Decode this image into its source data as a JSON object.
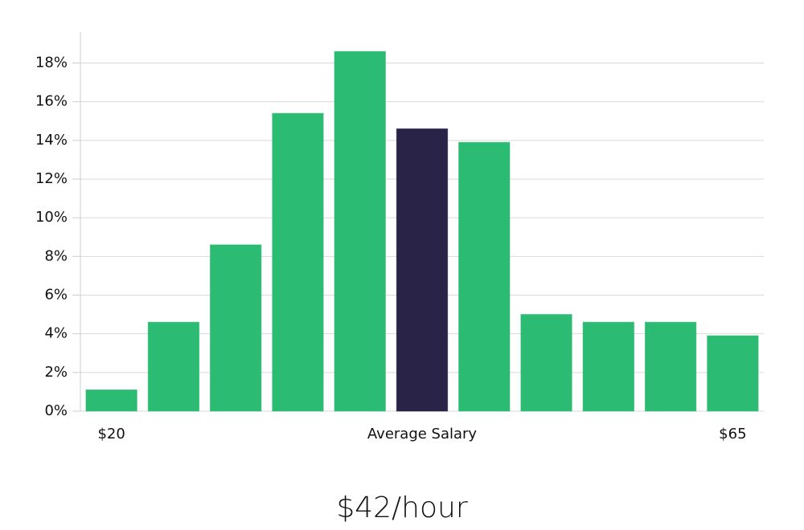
{
  "chart_data": {
    "type": "bar",
    "categories": [
      "$20",
      null,
      null,
      null,
      null,
      "Average Salary",
      null,
      null,
      null,
      null,
      "$65"
    ],
    "values": [
      1.1,
      4.6,
      8.6,
      15.4,
      18.6,
      14.6,
      13.9,
      5.0,
      4.6,
      4.6,
      3.9
    ],
    "colors": [
      "#2bbb73",
      "#2bbb73",
      "#2bbb73",
      "#2bbb73",
      "#2bbb73",
      "#282347",
      "#2bbb73",
      "#2bbb73",
      "#2bbb73",
      "#2bbb73",
      "#2bbb73"
    ],
    "ylim": [
      0,
      19.6
    ],
    "yticks": [
      {
        "value": 0,
        "label": "0%"
      },
      {
        "value": 2,
        "label": "2%"
      },
      {
        "value": 4,
        "label": "4%"
      },
      {
        "value": 6,
        "label": "6%"
      },
      {
        "value": 8,
        "label": "8%"
      },
      {
        "value": 10,
        "label": "10%"
      },
      {
        "value": 12,
        "label": "12%"
      },
      {
        "value": 14,
        "label": "14%"
      },
      {
        "value": 16,
        "label": "16%"
      },
      {
        "value": 18,
        "label": "18%"
      }
    ],
    "grid": true,
    "annotation": "$42/hour"
  }
}
